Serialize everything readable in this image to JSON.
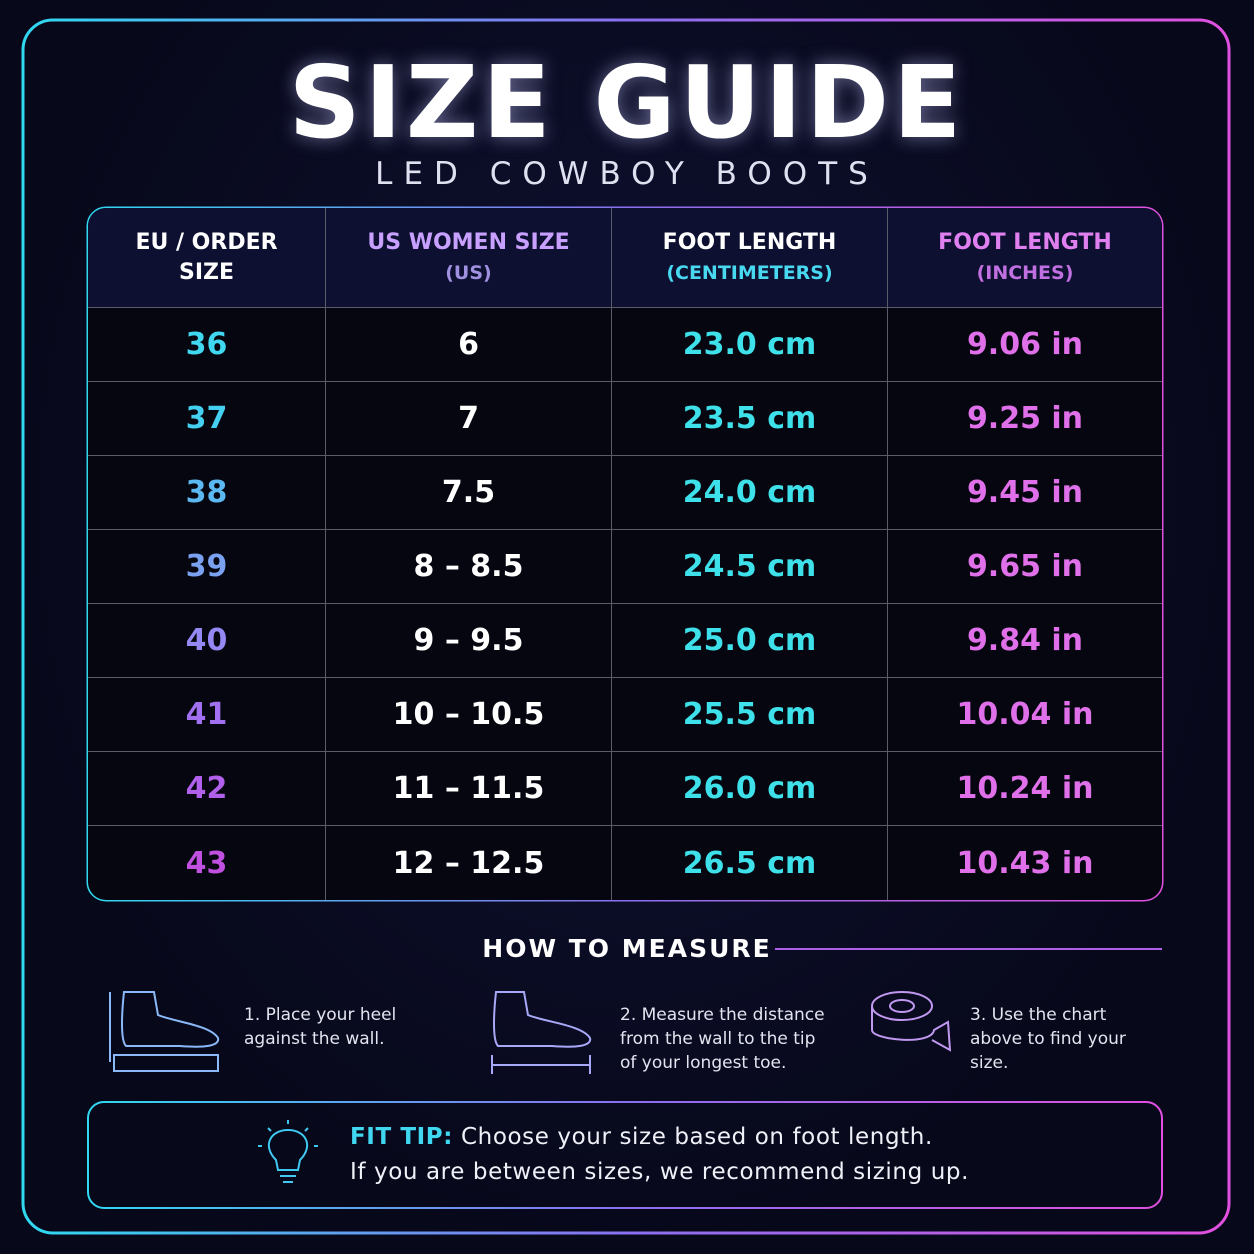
{
  "header": {
    "title": "SIZE GUIDE",
    "subtitle": "LED COWBOY BOOTS"
  },
  "table": {
    "headers": [
      {
        "main": "EU / ORDER SIZE"
      },
      {
        "main": "US WOMEN SIZE",
        "sub": "(US)"
      },
      {
        "main": "FOOT LENGTH",
        "sub": "(CENTIMETERS)"
      },
      {
        "main": "FOOT LENGTH",
        "sub": "(INCHES)"
      }
    ],
    "rows": [
      [
        "36",
        "6",
        "23.0 cm",
        "9.06 in"
      ],
      [
        "37",
        "7",
        "23.5 cm",
        "9.25 in"
      ],
      [
        "38",
        "7.5",
        "24.0 cm",
        "9.45 in"
      ],
      [
        "39",
        "8 – 8.5",
        "24.5 cm",
        "9.65 in"
      ],
      [
        "40",
        "9 – 9.5",
        "25.0 cm",
        "9.84 in"
      ],
      [
        "41",
        "10 – 10.5",
        "25.5 cm",
        "10.04 in"
      ],
      [
        "42",
        "11 – 11.5",
        "26.0 cm",
        "10.24 in"
      ],
      [
        "43",
        "12 – 12.5",
        "26.5 cm",
        "10.43 in"
      ]
    ]
  },
  "measure": {
    "title": "HOW TO MEASURE",
    "steps": [
      "1. Place your heel against the wall.",
      "2. Measure the distance from the wall to the tip of your longest toe.",
      "3. Use the chart above to find your size."
    ]
  },
  "fit_tip": {
    "label": "FIT TIP:",
    "line1": "Choose your size based on foot length.",
    "line2": "If you are between sizes, we recommend sizing up."
  }
}
